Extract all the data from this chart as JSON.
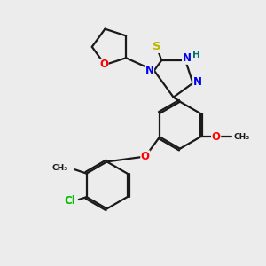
{
  "background_color": "#ececec",
  "bond_color": "#1a1a1a",
  "bond_lw": 1.6,
  "atom_colors": {
    "S": "#b8b800",
    "O": "#ff0000",
    "N": "#0000ee",
    "Cl": "#00bb00",
    "H": "#007070",
    "C": "#1a1a1a"
  },
  "fs": 8.5
}
